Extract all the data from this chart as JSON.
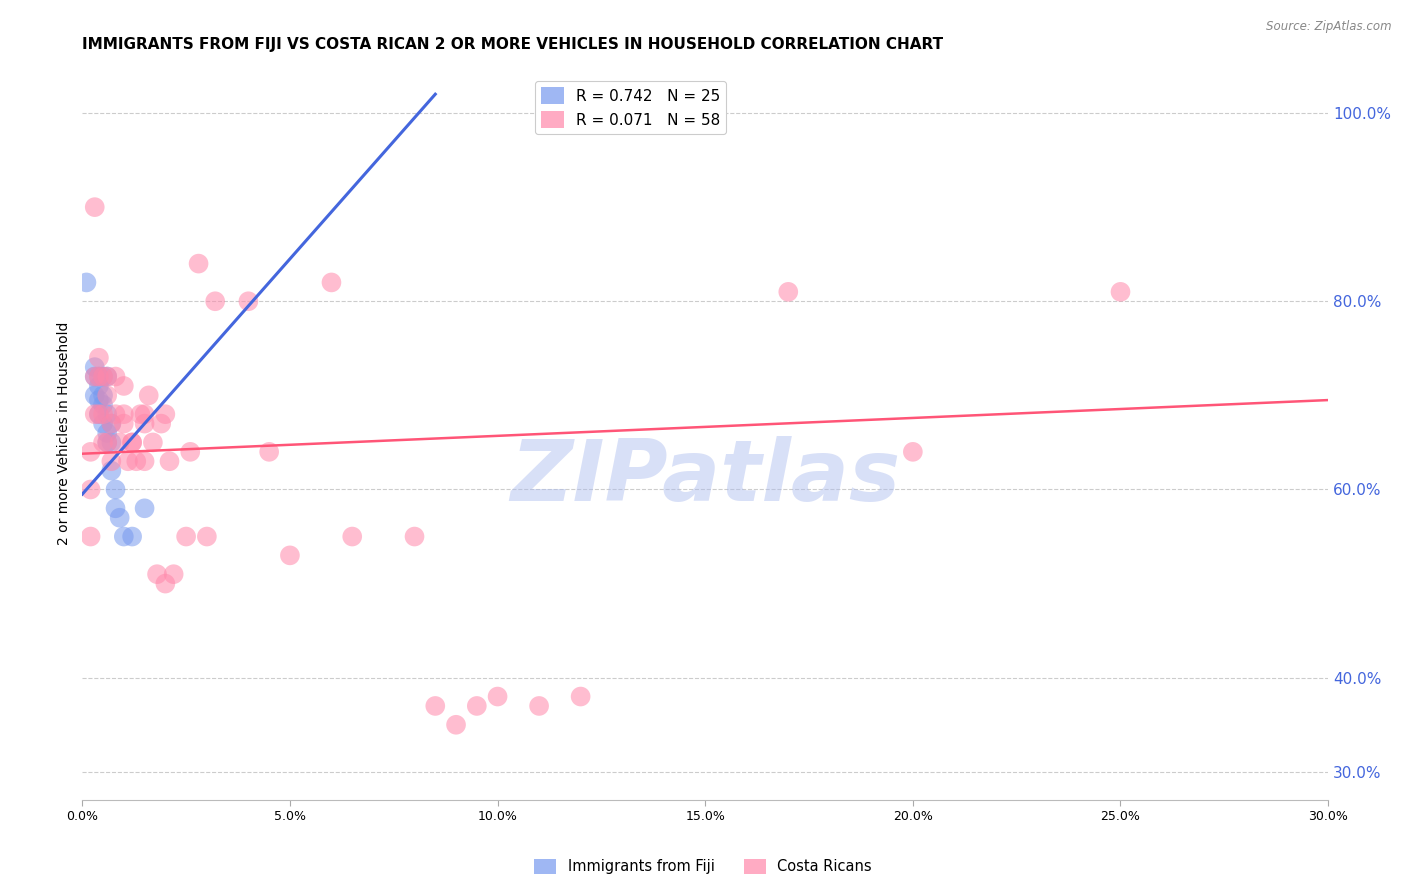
{
  "title": "IMMIGRANTS FROM FIJI VS COSTA RICAN 2 OR MORE VEHICLES IN HOUSEHOLD CORRELATION CHART",
  "source": "Source: ZipAtlas.com",
  "ylabel": "2 or more Vehicles in Household",
  "right_ytick_labels": [
    "100.0%",
    "80.0%",
    "60.0%",
    "40.0%",
    "30.0%"
  ],
  "right_ytick_values": [
    1.0,
    0.8,
    0.6,
    0.4,
    0.3
  ],
  "xlim": [
    0.0,
    0.3
  ],
  "ylim": [
    0.27,
    1.05
  ],
  "xtick_labels": [
    "0.0%",
    "5.0%",
    "10.0%",
    "15.0%",
    "20.0%",
    "25.0%",
    "30.0%"
  ],
  "xtick_values": [
    0.0,
    0.05,
    0.1,
    0.15,
    0.2,
    0.25,
    0.3
  ],
  "fiji_color": "#7799ee",
  "costa_rican_color": "#ff88aa",
  "fiji_trend_color": "#4466dd",
  "costa_rican_trend_color": "#ff5577",
  "watermark": "ZIPatlas",
  "watermark_color": "#aabbee",
  "title_fontsize": 11,
  "axis_label_fontsize": 10,
  "tick_label_fontsize": 9,
  "right_tick_color": "#4466dd",
  "fiji_scatter": [
    [
      0.001,
      0.82
    ],
    [
      0.003,
      0.72
    ],
    [
      0.003,
      0.7
    ],
    [
      0.003,
      0.73
    ],
    [
      0.004,
      0.72
    ],
    [
      0.004,
      0.695
    ],
    [
      0.004,
      0.68
    ],
    [
      0.004,
      0.71
    ],
    [
      0.005,
      0.69
    ],
    [
      0.005,
      0.72
    ],
    [
      0.005,
      0.67
    ],
    [
      0.005,
      0.7
    ],
    [
      0.006,
      0.66
    ],
    [
      0.006,
      0.72
    ],
    [
      0.006,
      0.68
    ],
    [
      0.006,
      0.65
    ],
    [
      0.007,
      0.65
    ],
    [
      0.007,
      0.67
    ],
    [
      0.007,
      0.62
    ],
    [
      0.008,
      0.6
    ],
    [
      0.008,
      0.58
    ],
    [
      0.009,
      0.57
    ],
    [
      0.01,
      0.55
    ],
    [
      0.012,
      0.55
    ],
    [
      0.015,
      0.58
    ]
  ],
  "costa_rican_scatter": [
    [
      0.002,
      0.64
    ],
    [
      0.002,
      0.6
    ],
    [
      0.002,
      0.55
    ],
    [
      0.003,
      0.9
    ],
    [
      0.003,
      0.72
    ],
    [
      0.003,
      0.68
    ],
    [
      0.004,
      0.72
    ],
    [
      0.004,
      0.68
    ],
    [
      0.004,
      0.74
    ],
    [
      0.005,
      0.72
    ],
    [
      0.005,
      0.65
    ],
    [
      0.005,
      0.68
    ],
    [
      0.006,
      0.7
    ],
    [
      0.006,
      0.65
    ],
    [
      0.006,
      0.72
    ],
    [
      0.007,
      0.67
    ],
    [
      0.007,
      0.63
    ],
    [
      0.008,
      0.72
    ],
    [
      0.008,
      0.68
    ],
    [
      0.009,
      0.65
    ],
    [
      0.01,
      0.67
    ],
    [
      0.01,
      0.71
    ],
    [
      0.01,
      0.68
    ],
    [
      0.011,
      0.63
    ],
    [
      0.012,
      0.65
    ],
    [
      0.012,
      0.65
    ],
    [
      0.013,
      0.63
    ],
    [
      0.014,
      0.68
    ],
    [
      0.015,
      0.67
    ],
    [
      0.015,
      0.63
    ],
    [
      0.015,
      0.68
    ],
    [
      0.016,
      0.7
    ],
    [
      0.017,
      0.65
    ],
    [
      0.018,
      0.51
    ],
    [
      0.019,
      0.67
    ],
    [
      0.02,
      0.68
    ],
    [
      0.02,
      0.5
    ],
    [
      0.021,
      0.63
    ],
    [
      0.022,
      0.51
    ],
    [
      0.025,
      0.55
    ],
    [
      0.026,
      0.64
    ],
    [
      0.028,
      0.84
    ],
    [
      0.03,
      0.55
    ],
    [
      0.032,
      0.8
    ],
    [
      0.04,
      0.8
    ],
    [
      0.045,
      0.64
    ],
    [
      0.05,
      0.53
    ],
    [
      0.06,
      0.82
    ],
    [
      0.065,
      0.55
    ],
    [
      0.08,
      0.55
    ],
    [
      0.085,
      0.37
    ],
    [
      0.09,
      0.35
    ],
    [
      0.095,
      0.37
    ],
    [
      0.1,
      0.38
    ],
    [
      0.11,
      0.37
    ],
    [
      0.12,
      0.38
    ],
    [
      0.17,
      0.81
    ],
    [
      0.2,
      0.64
    ],
    [
      0.25,
      0.81
    ]
  ],
  "fiji_trend_x": [
    0.0,
    0.085
  ],
  "fiji_trend_y": [
    0.595,
    1.02
  ],
  "costa_rican_trend_x": [
    0.0,
    0.3
  ],
  "costa_rican_trend_y": [
    0.638,
    0.695
  ]
}
